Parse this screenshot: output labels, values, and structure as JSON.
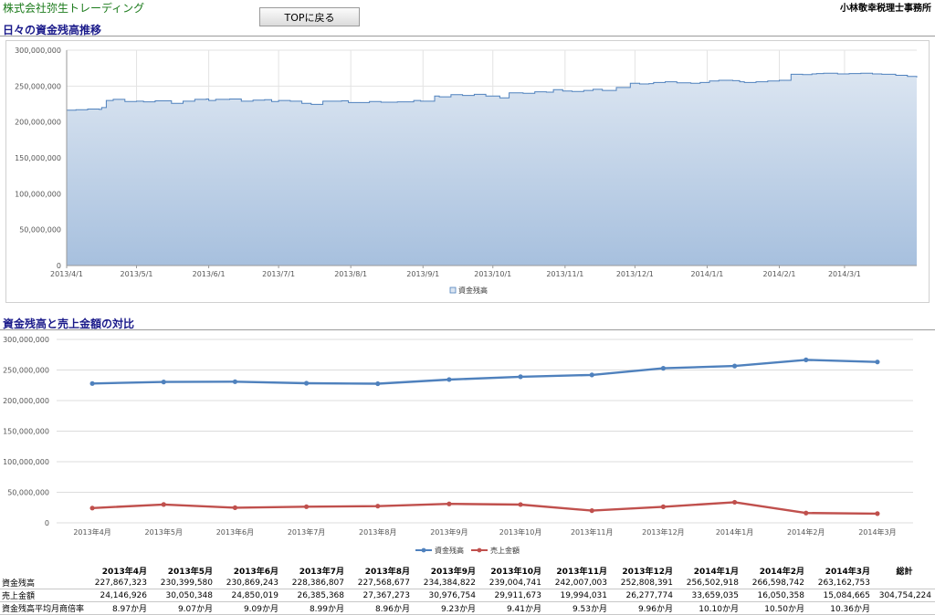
{
  "header": {
    "company": "株式会社弥生トレーディング",
    "top_button": "TOPに戻る",
    "office": "小林敬幸税理士事務所"
  },
  "sections": {
    "daily_title": "日々の資金残高推移",
    "compare_title": "資金残高と売上金額の対比"
  },
  "colors": {
    "balance": "#4f81bd",
    "sales": "#c0504d",
    "area_top": "#dbe5f1",
    "area_bottom": "#a7c0de",
    "title": "#1a1a8a"
  },
  "chart_data": [
    {
      "type": "area",
      "legend": [
        "資金残高"
      ],
      "legend_position": "bottom",
      "x_ticks": [
        "2013/4/1",
        "2013/5/1",
        "2013/6/1",
        "2013/7/1",
        "2013/8/1",
        "2013/9/1",
        "2013/10/1",
        "2013/11/1",
        "2013/12/1",
        "2014/1/1",
        "2014/2/1",
        "2014/3/1"
      ],
      "y_ticks": [
        "0",
        "50,000,000",
        "100,000,000",
        "150,000,000",
        "200,000,000",
        "250,000,000",
        "300,000,000"
      ],
      "ylim": [
        0,
        300000000
      ],
      "grid": true,
      "series": [
        {
          "name": "資金残高",
          "x_day": [
            0,
            4,
            9,
            14,
            15,
            17,
            20,
            25,
            30,
            33,
            38,
            45,
            50,
            55,
            60,
            61,
            64,
            70,
            75,
            80,
            85,
            88,
            91,
            96,
            101,
            105,
            110,
            118,
            121,
            125,
            130,
            135,
            142,
            149,
            152,
            158,
            160,
            165,
            170,
            175,
            180,
            186,
            190,
            196,
            201,
            206,
            209,
            213,
            217,
            222,
            226,
            230,
            236,
            242,
            246,
            250,
            252,
            257,
            262,
            268,
            272,
            276,
            280,
            286,
            289,
            291,
            296,
            301,
            306,
            311,
            316,
            320,
            322,
            325,
            331,
            336,
            341,
            346,
            350,
            356,
            361,
            365
          ],
          "values": [
            216500000,
            217000000,
            218000000,
            217500000,
            220000000,
            230000000,
            231500000,
            228500000,
            229000000,
            228000000,
            229500000,
            226000000,
            229000000,
            231500000,
            232000000,
            230000000,
            231500000,
            232000000,
            229000000,
            230500000,
            231000000,
            228500000,
            230000000,
            229000000,
            226000000,
            224500000,
            229000000,
            229500000,
            227000000,
            227000000,
            228500000,
            227500000,
            228000000,
            230000000,
            229000000,
            236000000,
            235000000,
            238000000,
            237000000,
            238500000,
            236000000,
            233500000,
            240500000,
            240000000,
            242000000,
            241500000,
            245000000,
            243000000,
            242500000,
            244000000,
            245500000,
            244000000,
            248000000,
            254000000,
            253000000,
            253500000,
            255000000,
            256000000,
            254500000,
            254000000,
            255000000,
            257000000,
            258000000,
            257500000,
            256000000,
            255000000,
            256000000,
            257000000,
            258000000,
            266500000,
            266000000,
            267000000,
            267500000,
            268000000,
            267000000,
            267500000,
            268000000,
            267000000,
            266500000,
            265000000,
            263500000,
            262000000
          ]
        }
      ]
    },
    {
      "type": "line",
      "legend": [
        "資金残高",
        "売上金額"
      ],
      "legend_position": "bottom",
      "categories": [
        "2013年4月",
        "2013年5月",
        "2013年6月",
        "2013年7月",
        "2013年8月",
        "2013年9月",
        "2013年10月",
        "2013年11月",
        "2013年12月",
        "2014年1月",
        "2014年2月",
        "2014年3月"
      ],
      "y_ticks": [
        "0",
        "50,000,000",
        "100,000,000",
        "150,000,000",
        "200,000,000",
        "250,000,000",
        "300,000,000"
      ],
      "ylim": [
        0,
        300000000
      ],
      "grid": true,
      "series": [
        {
          "name": "資金残高",
          "values": [
            227867323,
            230399580,
            230869243,
            228386807,
            227568677,
            234384822,
            239004741,
            242007003,
            252808391,
            256502918,
            266598742,
            263162753
          ]
        },
        {
          "name": "売上金額",
          "values": [
            24146926,
            30050348,
            24850019,
            26385368,
            27367273,
            30976754,
            29911673,
            19994031,
            26277774,
            33659035,
            16050358,
            15084665
          ]
        }
      ]
    }
  ],
  "table": {
    "columns": [
      "",
      "2013年4月",
      "2013年5月",
      "2013年6月",
      "2013年7月",
      "2013年8月",
      "2013年9月",
      "2013年10月",
      "2013年11月",
      "2013年12月",
      "2014年1月",
      "2014年2月",
      "2014年3月",
      "総計"
    ],
    "rows": [
      {
        "label": "資金残高",
        "cells": [
          "227,867,323",
          "230,399,580",
          "230,869,243",
          "228,386,807",
          "227,568,677",
          "234,384,822",
          "239,004,741",
          "242,007,003",
          "252,808,391",
          "256,502,918",
          "266,598,742",
          "263,162,753",
          ""
        ]
      },
      {
        "label": "売上金額",
        "cells": [
          "24,146,926",
          "30,050,348",
          "24,850,019",
          "26,385,368",
          "27,367,273",
          "30,976,754",
          "29,911,673",
          "19,994,031",
          "26,277,774",
          "33,659,035",
          "16,050,358",
          "15,084,665",
          "304,754,224"
        ]
      },
      {
        "label": "資金残高平均月商倍率",
        "cells": [
          "8.97か月",
          "9.07か月",
          "9.09か月",
          "8.99か月",
          "8.96か月",
          "9.23か月",
          "9.41か月",
          "9.53か月",
          "9.96か月",
          "10.10か月",
          "10.50か月",
          "10.36か月",
          ""
        ]
      }
    ]
  }
}
